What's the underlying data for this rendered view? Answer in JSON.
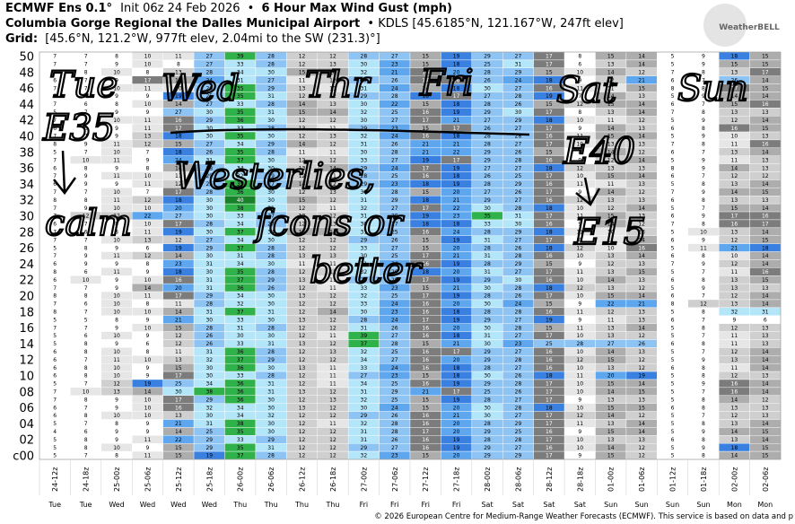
{
  "header": {
    "model": "ECMWF Ens 0.1°",
    "init": "Init 06z 24 Feb 2026",
    "bullet": "•",
    "variable": "6 Hour Max Wind Gust (mph)",
    "station": "Columbia Gorge Regional the Dalles Municipal Airport",
    "station_info": "• KDLS [45.6185°N, 121.167°W, 247ft elev]",
    "grid_label": "Grid:",
    "grid_info": "[45.6°N, 121.2°W, 977ft elev, 2.04mi to the SW (231.3)°]",
    "logo": "WeatherBELL"
  },
  "footer": "© 2026 European Centre for Medium-Range Weather Forecasts (ECMWF). This service is based on data and p",
  "annotations": [
    "Tue",
    "Wed",
    "Thr",
    "Fri",
    "Sat",
    "Sun",
    "E35",
    "calm",
    "Westerlies,",
    "E40",
    "E15",
    "fcons or",
    "better"
  ],
  "chart_data": {
    "type": "heatmap",
    "x": [
      "24-12z",
      "24-18z",
      "25-00z",
      "25-06z",
      "25-12z",
      "25-18z",
      "26-00z",
      "26-06z",
      "26-12z",
      "26-18z",
      "27-00z",
      "27-06z",
      "27-12z",
      "27-18z",
      "28-00z",
      "28-06z",
      "28-12z",
      "28-18z",
      "01-00z",
      "01-06z",
      "01-12z",
      "01-18z",
      "02-00z",
      "02-06z"
    ],
    "days": [
      "Tue",
      "Tue",
      "Wed",
      "Wed",
      "Wed",
      "Wed",
      "Thu",
      "Thu",
      "Thu",
      "Thu",
      "Fri",
      "Fri",
      "Fri",
      "Fri",
      "Sat",
      "Sat",
      "Sat",
      "Sat",
      "Sun",
      "Sun",
      "Sun",
      "Sun",
      "Mon",
      "Mon"
    ],
    "y": [
      "50",
      null,
      "48",
      null,
      "46",
      null,
      "44",
      null,
      "42",
      null,
      "40",
      null,
      "38",
      null,
      "36",
      null,
      "34",
      null,
      "32",
      null,
      "30",
      null,
      "28",
      null,
      "26",
      null,
      "24",
      null,
      "22",
      null,
      "20",
      null,
      "18",
      null,
      "16",
      null,
      "14",
      null,
      "12",
      null,
      "10",
      null,
      "08",
      null,
      "06",
      null,
      "04",
      null,
      "02",
      null,
      "c00"
    ],
    "values": [
      [
        7,
        7,
        8,
        10,
        11,
        27,
        39,
        28,
        12,
        12,
        28,
        27,
        15,
        19,
        29,
        27,
        17,
        8,
        15,
        14,
        5,
        9,
        18,
        15
      ],
      [
        7,
        7,
        9,
        10,
        8,
        27,
        33,
        28,
        12,
        13,
        30,
        23,
        15,
        18,
        25,
        31,
        17,
        6,
        13,
        14,
        5,
        9,
        15,
        15
      ],
      [
        7,
        8,
        10,
        8,
        13,
        28,
        34,
        30,
        15,
        14,
        32,
        21,
        16,
        20,
        28,
        29,
        15,
        10,
        14,
        12,
        7,
        8,
        13,
        17
      ],
      [
        6,
        7,
        9,
        17,
        14,
        24,
        31,
        27,
        11,
        12,
        27,
        26,
        17,
        16,
        26,
        24,
        18,
        9,
        12,
        21,
        6,
        7,
        26,
        14
      ],
      [
        7,
        7,
        10,
        11,
        10,
        26,
        35,
        29,
        13,
        11,
        31,
        24,
        14,
        18,
        30,
        27,
        16,
        11,
        11,
        15,
        8,
        8,
        17,
        15
      ],
      [
        6,
        8,
        9,
        9,
        19,
        25,
        35,
        31,
        12,
        12,
        29,
        28,
        18,
        17,
        27,
        28,
        19,
        7,
        14,
        13,
        5,
        9,
        14,
        14
      ],
      [
        7,
        6,
        8,
        10,
        14,
        27,
        33,
        28,
        14,
        13,
        30,
        22,
        15,
        18,
        28,
        26,
        15,
        12,
        15,
        14,
        6,
        7,
        15,
        16
      ],
      [
        5,
        7,
        9,
        9,
        27,
        30,
        35,
        31,
        15,
        14,
        32,
        25,
        16,
        19,
        29,
        30,
        17,
        8,
        13,
        14,
        7,
        8,
        13,
        13
      ],
      [
        7,
        7,
        10,
        11,
        16,
        29,
        36,
        30,
        12,
        12,
        30,
        27,
        17,
        21,
        27,
        29,
        18,
        10,
        11,
        12,
        5,
        9,
        12,
        14
      ],
      [
        6,
        6,
        9,
        11,
        17,
        30,
        33,
        28,
        13,
        11,
        29,
        23,
        15,
        17,
        26,
        27,
        17,
        9,
        14,
        13,
        6,
        8,
        16,
        15
      ],
      [
        7,
        7,
        9,
        13,
        18,
        30,
        35,
        30,
        12,
        13,
        32,
        24,
        16,
        18,
        28,
        28,
        16,
        11,
        15,
        14,
        5,
        9,
        10,
        13
      ],
      [
        8,
        9,
        11,
        12,
        15,
        27,
        34,
        29,
        14,
        12,
        31,
        26,
        21,
        21,
        28,
        27,
        17,
        10,
        13,
        13,
        7,
        8,
        11,
        16
      ],
      [
        5,
        7,
        10,
        7,
        18,
        26,
        35,
        28,
        11,
        11,
        30,
        28,
        21,
        22,
        29,
        26,
        15,
        8,
        14,
        12,
        6,
        7,
        13,
        14
      ],
      [
        7,
        10,
        11,
        9,
        24,
        31,
        37,
        30,
        12,
        12,
        33,
        27,
        19,
        17,
        29,
        28,
        16,
        9,
        12,
        14,
        5,
        9,
        11,
        13
      ],
      [
        6,
        8,
        9,
        8,
        14,
        28,
        34,
        30,
        13,
        14,
        29,
        24,
        17,
        19,
        27,
        27,
        18,
        12,
        13,
        13,
        8,
        9,
        14,
        13
      ],
      [
        7,
        9,
        11,
        10,
        11,
        29,
        32,
        29,
        12,
        11,
        28,
        25,
        16,
        18,
        26,
        25,
        17,
        10,
        15,
        14,
        6,
        7,
        12,
        12
      ],
      [
        6,
        9,
        9,
        11,
        12,
        25,
        35,
        27,
        14,
        12,
        29,
        23,
        18,
        19,
        28,
        29,
        16,
        11,
        11,
        13,
        5,
        8,
        13,
        14
      ],
      [
        7,
        7,
        10,
        7,
        17,
        28,
        36,
        30,
        12,
        13,
        30,
        28,
        15,
        20,
        27,
        26,
        17,
        9,
        14,
        12,
        7,
        9,
        14,
        15
      ],
      [
        8,
        8,
        11,
        12,
        18,
        30,
        40,
        30,
        15,
        12,
        31,
        29,
        18,
        21,
        29,
        27,
        16,
        12,
        13,
        13,
        6,
        8,
        13,
        13
      ],
      [
        7,
        9,
        10,
        10,
        20,
        30,
        38,
        31,
        12,
        11,
        32,
        27,
        17,
        22,
        30,
        28,
        18,
        10,
        12,
        14,
        5,
        7,
        15,
        14
      ],
      [
        7,
        12,
        12,
        22,
        27,
        30,
        33,
        27,
        13,
        12,
        31,
        28,
        19,
        23,
        35,
        31,
        17,
        11,
        15,
        13,
        6,
        9,
        17,
        16
      ],
      [
        6,
        7,
        8,
        10,
        17,
        28,
        34,
        27,
        12,
        13,
        30,
        27,
        18,
        18,
        33,
        30,
        16,
        9,
        14,
        12,
        7,
        8,
        16,
        17
      ],
      [
        7,
        6,
        8,
        11,
        19,
        30,
        37,
        34,
        14,
        14,
        31,
        25,
        16,
        24,
        28,
        29,
        18,
        11,
        10,
        13,
        5,
        10,
        13,
        14
      ],
      [
        7,
        7,
        10,
        13,
        12,
        27,
        34,
        30,
        12,
        12,
        29,
        26,
        15,
        19,
        31,
        27,
        17,
        8,
        11,
        14,
        6,
        9,
        12,
        15
      ],
      [
        5,
        8,
        9,
        6,
        19,
        29,
        37,
        28,
        12,
        12,
        33,
        27,
        15,
        20,
        28,
        26,
        18,
        12,
        10,
        16,
        5,
        11,
        21,
        18
      ],
      [
        7,
        9,
        11,
        12,
        14,
        30,
        31,
        28,
        13,
        13,
        30,
        25,
        17,
        21,
        31,
        28,
        16,
        10,
        13,
        14,
        6,
        8,
        10,
        14
      ],
      [
        6,
        9,
        9,
        8,
        23,
        31,
        34,
        30,
        11,
        11,
        31,
        24,
        16,
        19,
        28,
        29,
        15,
        9,
        12,
        13,
        7,
        9,
        12,
        14
      ],
      [
        8,
        6,
        11,
        9,
        18,
        30,
        35,
        28,
        12,
        12,
        32,
        26,
        18,
        20,
        31,
        27,
        17,
        11,
        13,
        15,
        5,
        7,
        11,
        16
      ],
      [
        6,
        10,
        9,
        10,
        16,
        31,
        37,
        29,
        13,
        11,
        29,
        28,
        17,
        19,
        29,
        30,
        16,
        10,
        14,
        13,
        6,
        8,
        13,
        15
      ],
      [
        7,
        7,
        9,
        14,
        20,
        31,
        36,
        26,
        12,
        11,
        33,
        23,
        15,
        21,
        30,
        28,
        18,
        12,
        13,
        12,
        5,
        9,
        13,
        13
      ],
      [
        8,
        8,
        10,
        11,
        17,
        29,
        34,
        30,
        13,
        12,
        32,
        25,
        17,
        19,
        28,
        26,
        17,
        10,
        15,
        14,
        6,
        7,
        12,
        14
      ],
      [
        7,
        6,
        10,
        8,
        11,
        28,
        32,
        30,
        12,
        12,
        33,
        24,
        16,
        20,
        30,
        24,
        15,
        9,
        22,
        21,
        8,
        12,
        13,
        14
      ],
      [
        8,
        7,
        10,
        10,
        14,
        31,
        37,
        31,
        12,
        14,
        30,
        23,
        16,
        18,
        28,
        28,
        16,
        11,
        12,
        13,
        5,
        8,
        32,
        31
      ],
      [
        5,
        5,
        8,
        9,
        21,
        30,
        33,
        30,
        13,
        12,
        28,
        24,
        17,
        19,
        29,
        27,
        19,
        9,
        11,
        13,
        6,
        7,
        9,
        6
      ],
      [
        7,
        7,
        9,
        10,
        15,
        28,
        31,
        28,
        12,
        12,
        31,
        26,
        16,
        20,
        30,
        28,
        15,
        11,
        13,
        14,
        5,
        8,
        12,
        13
      ],
      [
        5,
        6,
        10,
        9,
        12,
        26,
        30,
        30,
        12,
        11,
        39,
        27,
        16,
        18,
        31,
        27,
        17,
        10,
        13,
        12,
        5,
        7,
        11,
        13
      ],
      [
        5,
        8,
        9,
        6,
        12,
        26,
        33,
        31,
        13,
        12,
        37,
        28,
        15,
        21,
        30,
        23,
        25,
        28,
        27,
        26,
        6,
        8,
        11,
        13
      ],
      [
        6,
        8,
        10,
        8,
        11,
        31,
        36,
        28,
        12,
        13,
        32,
        25,
        16,
        17,
        29,
        27,
        16,
        10,
        14,
        13,
        5,
        7,
        12,
        14
      ],
      [
        6,
        7,
        11,
        10,
        13,
        32,
        37,
        29,
        12,
        12,
        34,
        27,
        16,
        20,
        29,
        28,
        16,
        12,
        15,
        12,
        5,
        9,
        13,
        14
      ],
      [
        6,
        8,
        10,
        9,
        15,
        30,
        36,
        30,
        13,
        11,
        33,
        24,
        16,
        18,
        28,
        27,
        16,
        10,
        13,
        12,
        6,
        8,
        11,
        14
      ],
      [
        6,
        8,
        10,
        9,
        17,
        30,
        33,
        28,
        12,
        11,
        27,
        23,
        15,
        18,
        30,
        26,
        18,
        11,
        20,
        19,
        5,
        8,
        12,
        13
      ],
      [
        5,
        7,
        12,
        19,
        25,
        34,
        36,
        31,
        12,
        11,
        34,
        25,
        16,
        19,
        29,
        28,
        17,
        10,
        15,
        14,
        5,
        9,
        16,
        14
      ],
      [
        7,
        10,
        13,
        14,
        30,
        38,
        36,
        31,
        13,
        12,
        31,
        29,
        21,
        17,
        25,
        26,
        17,
        10,
        14,
        15,
        5,
        7,
        16,
        14
      ],
      [
        7,
        8,
        9,
        10,
        17,
        29,
        36,
        30,
        12,
        13,
        32,
        25,
        15,
        19,
        28,
        27,
        17,
        9,
        13,
        13,
        5,
        8,
        14,
        12
      ],
      [
        6,
        7,
        9,
        10,
        16,
        32,
        34,
        30,
        13,
        12,
        30,
        24,
        15,
        20,
        30,
        28,
        18,
        10,
        15,
        15,
        6,
        8,
        13,
        13
      ],
      [
        6,
        8,
        10,
        10,
        13,
        30,
        34,
        32,
        12,
        12,
        29,
        26,
        16,
        21,
        30,
        27,
        17,
        12,
        14,
        12,
        5,
        7,
        12,
        13
      ],
      [
        5,
        7,
        8,
        9,
        21,
        31,
        38,
        30,
        12,
        11,
        32,
        28,
        16,
        20,
        28,
        29,
        17,
        11,
        13,
        14,
        5,
        8,
        13,
        14
      ],
      [
        4,
        6,
        9,
        9,
        14,
        25,
        35,
        30,
        12,
        12,
        31,
        28,
        17,
        20,
        29,
        25,
        16,
        9,
        15,
        14,
        5,
        9,
        14,
        15
      ],
      [
        5,
        8,
        9,
        11,
        22,
        29,
        33,
        29,
        12,
        12,
        31,
        26,
        16,
        19,
        28,
        28,
        17,
        10,
        13,
        13,
        6,
        8,
        13,
        14
      ],
      [
        5,
        8,
        10,
        9,
        15,
        29,
        35,
        31,
        12,
        12,
        29,
        27,
        16,
        19,
        29,
        27,
        16,
        10,
        14,
        12,
        5,
        9,
        18,
        15
      ],
      [
        5,
        7,
        8,
        11,
        15,
        19,
        37,
        28,
        12,
        12,
        32,
        23,
        15,
        20,
        29,
        29,
        17,
        9,
        15,
        12,
        5,
        8,
        14,
        15
      ]
    ]
  }
}
